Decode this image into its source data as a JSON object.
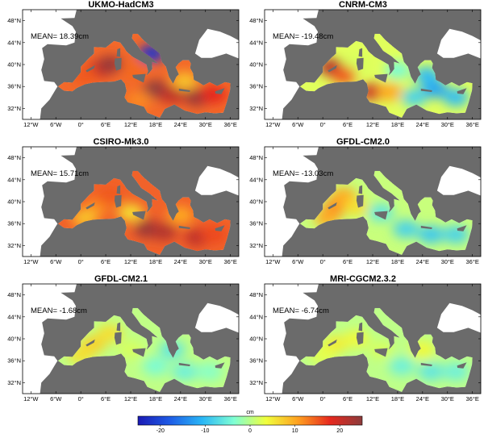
{
  "panels": [
    {
      "title": "UKMO-HadCM3",
      "mean": "MEAN= 18.39cm",
      "blobs": [
        {
          "lon": 4,
          "lat": 39,
          "val": 20
        },
        {
          "lon": 7,
          "lat": 40,
          "val": 24
        },
        {
          "lon": 1,
          "lat": 38,
          "val": 15
        },
        {
          "lon": 13,
          "lat": 39,
          "val": 14
        },
        {
          "lon": 18,
          "lat": 35.5,
          "val": 25
        },
        {
          "lon": 22,
          "lat": 34.5,
          "val": 21
        },
        {
          "lon": 28,
          "lat": 34,
          "val": 24
        },
        {
          "lon": 32,
          "lat": 34.5,
          "val": 18
        },
        {
          "lon": 14,
          "lat": 33.5,
          "val": 12
        },
        {
          "lon": 25,
          "lat": 37,
          "val": 8
        },
        {
          "lon": 17,
          "lat": 42,
          "val": -22
        }
      ]
    },
    {
      "title": "CNRM-CM3",
      "mean": "MEAN= -19.48cm",
      "blobs": [
        {
          "lon": 2,
          "lat": 39.5,
          "val": 22
        },
        {
          "lon": 8,
          "lat": 40,
          "val": 2
        },
        {
          "lon": 12,
          "lat": 35,
          "val": 20
        },
        {
          "lon": 16,
          "lat": 35,
          "val": 10
        },
        {
          "lon": 22,
          "lat": 34,
          "val": -8
        },
        {
          "lon": 27,
          "lat": 35.5,
          "val": -12
        },
        {
          "lon": 32,
          "lat": 34,
          "val": -10
        },
        {
          "lon": 5,
          "lat": 38,
          "val": 15
        },
        {
          "lon": 18,
          "lat": 39,
          "val": -4
        },
        {
          "lon": 25,
          "lat": 38,
          "val": -10
        }
      ]
    },
    {
      "title": "CSIRO-Mk3.0",
      "mean": "MEAN= 15.71cm",
      "blobs": [
        {
          "lon": 4,
          "lat": 39,
          "val": 12
        },
        {
          "lon": 7,
          "lat": 41,
          "val": 15
        },
        {
          "lon": 16,
          "lat": 35,
          "val": 24
        },
        {
          "lon": 20,
          "lat": 34.5,
          "val": 22
        },
        {
          "lon": 28,
          "lat": 33.5,
          "val": 21
        },
        {
          "lon": 32,
          "lat": 34,
          "val": 16
        },
        {
          "lon": 12,
          "lat": 38,
          "val": 6
        },
        {
          "lon": 24,
          "lat": 37.5,
          "val": 10
        },
        {
          "lon": 1,
          "lat": 37,
          "val": 8
        }
      ]
    },
    {
      "title": "GFDL-CM2.0",
      "mean": "MEAN= -13.03cm",
      "blobs": [
        {
          "lon": 3,
          "lat": 39,
          "val": 12
        },
        {
          "lon": 5,
          "lat": 41,
          "val": 10
        },
        {
          "lon": 1,
          "lat": 37,
          "val": 10
        },
        {
          "lon": 8,
          "lat": 39,
          "val": 6
        },
        {
          "lon": 14,
          "lat": 38,
          "val": -6
        },
        {
          "lon": 20,
          "lat": 35,
          "val": -8
        },
        {
          "lon": 26,
          "lat": 34,
          "val": -9
        },
        {
          "lon": 32,
          "lat": 34,
          "val": -8
        }
      ]
    },
    {
      "title": "GFDL-CM2.1",
      "mean": "MEAN= -1.68cm",
      "blobs": [
        {
          "lon": 3,
          "lat": 39,
          "val": 7
        },
        {
          "lon": 7,
          "lat": 41,
          "val": 6
        },
        {
          "lon": 12,
          "lat": 38,
          "val": 2
        },
        {
          "lon": 18,
          "lat": 35,
          "val": -4
        },
        {
          "lon": 25,
          "lat": 34,
          "val": -5
        },
        {
          "lon": 31,
          "lat": 34,
          "val": -3
        },
        {
          "lon": 0,
          "lat": 37,
          "val": 6
        },
        {
          "lon": 22,
          "lat": 38,
          "val": -6
        }
      ]
    },
    {
      "title": "MRI-CGCM2.3.2",
      "mean": "MEAN= -6.74cm",
      "blobs": [
        {
          "lon": 3,
          "lat": 39,
          "val": 5
        },
        {
          "lon": 8,
          "lat": 40,
          "val": 4
        },
        {
          "lon": 14,
          "lat": 38,
          "val": 2
        },
        {
          "lon": 19,
          "lat": 35,
          "val": -5
        },
        {
          "lon": 26,
          "lat": 34,
          "val": -6
        },
        {
          "lon": 32,
          "lat": 34,
          "val": -5
        },
        {
          "lon": 24,
          "lat": 38,
          "val": 4
        },
        {
          "lon": 0,
          "lat": 37,
          "val": 3
        }
      ]
    }
  ],
  "lon_ticks": [
    "12°W",
    "6°W",
    "0°",
    "6°E",
    "12°E",
    "18°E",
    "24°E",
    "30°E",
    "36°E"
  ],
  "lat_ticks": [
    "48°N",
    "44°N",
    "40°N",
    "36°N",
    "32°N"
  ],
  "colorbar": {
    "unit": "cm",
    "min": -25,
    "max": 25,
    "ticks": [
      "-20",
      "-10",
      "0",
      "10",
      "20"
    ],
    "tick_values": [
      -20,
      -10,
      0,
      10,
      20
    ]
  },
  "colors": {
    "land": "#6b6b6b",
    "ocean_bg": "#ffffff",
    "colormap": [
      "#1a1ab4",
      "#1e5ce6",
      "#29b6f6",
      "#7fffd4",
      "#f0ff3c",
      "#ffa020",
      "#e6281e",
      "#8c3c3c"
    ]
  }
}
